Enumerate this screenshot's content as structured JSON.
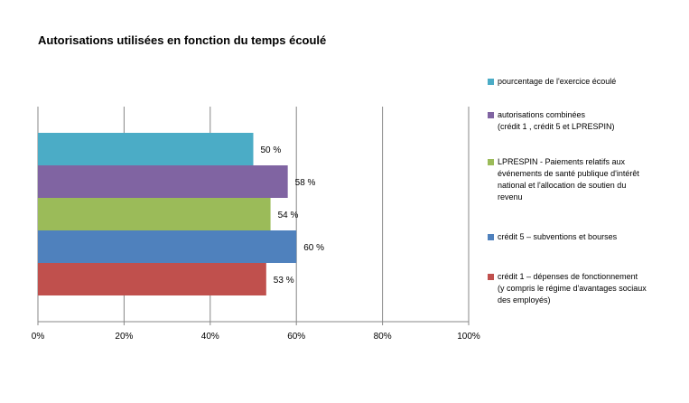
{
  "chart_data": {
    "type": "bar",
    "orientation": "horizontal",
    "title": "Autorisations utilisées en fonction du temps écoulé",
    "xlabel": "",
    "ylabel": "",
    "xlim": [
      0,
      100
    ],
    "x_ticks": [
      "0%",
      "20%",
      "40%",
      "60%",
      "80%",
      "100%"
    ],
    "grid": "vertical",
    "legend_position": "right",
    "series": [
      {
        "legend_lines": [
          "pourcentage de l'exercice écoulé"
        ],
        "value": 50,
        "label": "50 %",
        "color": "#4BACC6"
      },
      {
        "legend_lines": [
          "autorisations combinées",
          "(crédit 1 , crédit 5 et LPRESPIN)"
        ],
        "value": 58,
        "label": "58 %",
        "color": "#8064A2"
      },
      {
        "legend_lines": [
          "LPRESPIN - Paiements relatifs aux",
          "événements de santé publique d'intérêt",
          "national et l'allocation de soutien du",
          "revenu"
        ],
        "value": 54,
        "label": "54 %",
        "color": "#9BBB59"
      },
      {
        "legend_lines": [
          "crédit 5 – subventions et bourses"
        ],
        "value": 60,
        "label": "60 %",
        "color": "#4F81BD"
      },
      {
        "legend_lines": [
          "crédit 1 – dépenses de fonctionnement",
          "(y compris le régime d'avantages sociaux",
          "des employés)"
        ],
        "value": 53,
        "label": "53 %",
        "color": "#C0504D"
      }
    ]
  }
}
